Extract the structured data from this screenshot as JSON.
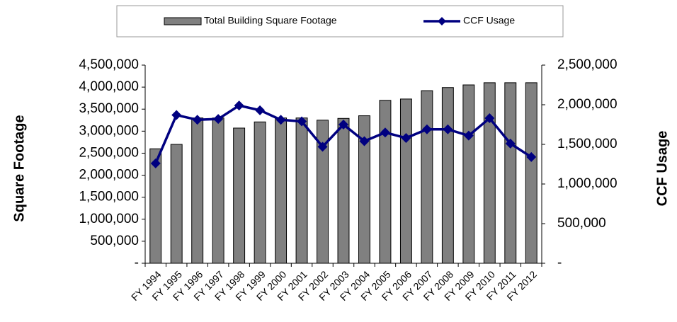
{
  "chart_data": {
    "type": "bar",
    "categories": [
      "FY 1994",
      "FY 1995",
      "FY 1996",
      "FY 1997",
      "FY 1998",
      "FY 1999",
      "FY 2000",
      "FY 2001",
      "FY 2002",
      "FY 2003",
      "FY 2004",
      "FY 2005",
      "FY 2006",
      "FY 2007",
      "FY 2008",
      "FY 2009",
      "FY 2010",
      "FY 2011",
      "FY 2012"
    ],
    "series": [
      {
        "name": "Total Building Square Footage",
        "type": "bar",
        "color": "#808080",
        "values": [
          2600000,
          2700000,
          3300000,
          3300000,
          3070000,
          3210000,
          3300000,
          3300000,
          3250000,
          3290000,
          3350000,
          3700000,
          3730000,
          3920000,
          3990000,
          4050000,
          4100000,
          4100000,
          4100000
        ]
      },
      {
        "name": "CCF Usage",
        "type": "line",
        "color": "#000080",
        "axis": "y2",
        "values": [
          1260000,
          1870000,
          1810000,
          1820000,
          1990000,
          1930000,
          1810000,
          1790000,
          1470000,
          1750000,
          1540000,
          1650000,
          1580000,
          1690000,
          1690000,
          1610000,
          1830000,
          1510000,
          1340000
        ]
      }
    ],
    "ylabel": "Square Footage",
    "y2label": "CCF Usage",
    "ylim": [
      0,
      4500000
    ],
    "yticks": [
      {
        "value": 0,
        "label": "-"
      },
      {
        "value": 500000,
        "label": "500,000"
      },
      {
        "value": 1000000,
        "label": "1,000,000"
      },
      {
        "value": 1500000,
        "label": "1,500,000"
      },
      {
        "value": 2000000,
        "label": "2,000,000"
      },
      {
        "value": 2500000,
        "label": "2,500,000"
      },
      {
        "value": 3000000,
        "label": "3,000,000"
      },
      {
        "value": 3500000,
        "label": "3,500,000"
      },
      {
        "value": 4000000,
        "label": "4,000,000"
      },
      {
        "value": 4500000,
        "label": "4,500,000"
      }
    ],
    "y2lim": [
      0,
      2500000
    ],
    "y2ticks": [
      {
        "value": 0,
        "label": "-"
      },
      {
        "value": 500000,
        "label": "500,000"
      },
      {
        "value": 1000000,
        "label": "1,000,000"
      },
      {
        "value": 1500000,
        "label": "1,500,000"
      },
      {
        "value": 2000000,
        "label": "2,000,000"
      },
      {
        "value": 2500000,
        "label": "2,500,000"
      }
    ],
    "legend": "top"
  }
}
